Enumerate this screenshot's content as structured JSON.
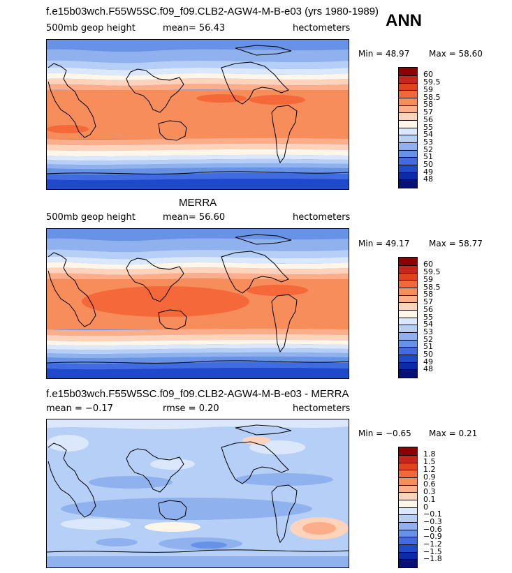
{
  "season": "ANN",
  "panels": [
    {
      "title": "f.e15b03wch.F55W5SC.f09_f09.CLB2-AGW4-M-B-e03 (yrs 1980-1989)",
      "left_label": "500mb geop height",
      "center_label": "mean=  56.43",
      "right_label": "hectometers",
      "min_text": "Min =  48.97",
      "max_text": "Max =  58.60",
      "colorbar": {
        "colors": [
          "#8b0000",
          "#c8231c",
          "#e2431f",
          "#f46839",
          "#f88d5c",
          "#fcae8b",
          "#fdd3bc",
          "#fff6ea",
          "#dbe8fb",
          "#b6cff6",
          "#8fb2ee",
          "#6892e6",
          "#3f6ce0",
          "#1f48cd",
          "#0d2aa8",
          "#061177"
        ],
        "labels": [
          "60",
          "59.5",
          "59",
          "58.5",
          "58",
          "57",
          "56",
          "55",
          "54",
          "53",
          "52",
          "51",
          "50",
          "49",
          "48"
        ]
      }
    },
    {
      "title": "MERRA",
      "left_label": "500mb geop height",
      "center_label": "mean=  56.60",
      "right_label": "hectometers",
      "min_text": "Min =  49.17",
      "max_text": "Max =  58.77",
      "colorbar": {
        "colors": [
          "#8b0000",
          "#c8231c",
          "#e2431f",
          "#f46839",
          "#f88d5c",
          "#fcae8b",
          "#fdd3bc",
          "#fff6ea",
          "#dbe8fb",
          "#b6cff6",
          "#8fb2ee",
          "#6892e6",
          "#3f6ce0",
          "#1f48cd",
          "#0d2aa8",
          "#061177"
        ],
        "labels": [
          "60",
          "59.5",
          "59",
          "58.5",
          "58",
          "57",
          "56",
          "55",
          "54",
          "53",
          "52",
          "51",
          "50",
          "49",
          "48"
        ]
      }
    },
    {
      "title": "f.e15b03wch.F55W5SC.f09_f09.CLB2-AGW4-M-B-e03 - MERRA",
      "left_label": "mean =  −0.17",
      "center_label": "rmse =   0.20",
      "right_label": "hectometers",
      "min_text": "Min =  −0.65",
      "max_text": "Max =   0.21",
      "colorbar": {
        "colors": [
          "#8b0000",
          "#c8231c",
          "#e2431f",
          "#f46839",
          "#f88d5c",
          "#fcae8b",
          "#fdd3bc",
          "#fff6ea",
          "#dbe8fb",
          "#b6cff6",
          "#8fb2ee",
          "#6892e6",
          "#3f6ce0",
          "#1f48cd",
          "#0d2aa8",
          "#061177"
        ],
        "labels": [
          "1.8",
          "1.5",
          "1.2",
          "0.9",
          "0.6",
          "0.3",
          "0.1",
          "0",
          "−0.1",
          "−0.3",
          "−0.6",
          "−0.9",
          "−1.2",
          "−1.5",
          "−1.8"
        ]
      }
    }
  ]
}
